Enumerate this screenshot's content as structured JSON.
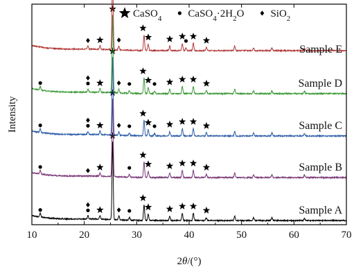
{
  "chart_data": {
    "type": "line",
    "xlabel": "2θ/(°)",
    "ylabel": "Intensity",
    "xlim": [
      10,
      70
    ],
    "x_ticks": [
      "10",
      "20",
      "30",
      "40",
      "50",
      "60",
      "70"
    ],
    "grid": false,
    "legend_position": "top",
    "legend": [
      {
        "marker": "star",
        "label": "CaSO4"
      },
      {
        "marker": "circle",
        "label": "CaSO4·2H2O"
      },
      {
        "marker": "diamond",
        "label": "SiO2"
      }
    ],
    "series": [
      {
        "name": "Sample A",
        "color": "#000000",
        "peaks": [
          {
            "x": 11.6,
            "h": 0.8
          },
          {
            "x": 20.7,
            "h": 0.7
          },
          {
            "x": 23.0,
            "h": 0.8
          },
          {
            "x": 25.4,
            "h": 17.0
          },
          {
            "x": 26.6,
            "h": 0.8
          },
          {
            "x": 28.6,
            "h": 0.6
          },
          {
            "x": 31.4,
            "h": 3.4
          },
          {
            "x": 32.2,
            "h": 1.4
          },
          {
            "x": 36.3,
            "h": 1.0
          },
          {
            "x": 38.7,
            "h": 1.6
          },
          {
            "x": 40.8,
            "h": 1.6
          },
          {
            "x": 43.3,
            "h": 0.7
          },
          {
            "x": 48.7,
            "h": 1.0
          },
          {
            "x": 52.3,
            "h": 0.6
          },
          {
            "x": 55.8,
            "h": 0.6
          },
          {
            "x": 62.0,
            "h": 0.5
          }
        ],
        "markers": [
          {
            "x": 11.6,
            "type": "circle"
          },
          {
            "x": 20.7,
            "type": "circle"
          },
          {
            "x": 20.7,
            "type": "diamond"
          },
          {
            "x": 23.0,
            "type": "star"
          },
          {
            "x": 25.4,
            "type": "star"
          },
          {
            "x": 26.6,
            "type": "diamond"
          },
          {
            "x": 28.6,
            "type": "circle"
          },
          {
            "x": 31.2,
            "type": "star"
          },
          {
            "x": 32.2,
            "type": "star"
          },
          {
            "x": 36.3,
            "type": "star"
          },
          {
            "x": 38.7,
            "type": "star"
          },
          {
            "x": 40.8,
            "type": "star"
          },
          {
            "x": 43.3,
            "type": "star"
          }
        ]
      },
      {
        "name": "Sample B",
        "color": "#7a3a78",
        "peaks": [
          {
            "x": 11.6,
            "h": 0.8
          },
          {
            "x": 23.0,
            "h": 0.7
          },
          {
            "x": 25.4,
            "h": 17.0
          },
          {
            "x": 28.6,
            "h": 0.6
          },
          {
            "x": 31.4,
            "h": 3.4
          },
          {
            "x": 32.2,
            "h": 1.4
          },
          {
            "x": 36.3,
            "h": 1.0
          },
          {
            "x": 38.7,
            "h": 1.6
          },
          {
            "x": 40.8,
            "h": 1.6
          },
          {
            "x": 43.3,
            "h": 0.7
          },
          {
            "x": 48.7,
            "h": 1.0
          },
          {
            "x": 52.3,
            "h": 0.6
          },
          {
            "x": 55.8,
            "h": 0.6
          },
          {
            "x": 62.0,
            "h": 0.5
          }
        ],
        "markers": [
          {
            "x": 11.6,
            "type": "circle"
          },
          {
            "x": 20.7,
            "type": "diamond"
          },
          {
            "x": 23.0,
            "type": "star"
          },
          {
            "x": 25.4,
            "type": "star"
          },
          {
            "x": 28.6,
            "type": "circle"
          },
          {
            "x": 31.2,
            "type": "star"
          },
          {
            "x": 32.2,
            "type": "star"
          },
          {
            "x": 36.3,
            "type": "star"
          },
          {
            "x": 38.7,
            "type": "star"
          },
          {
            "x": 40.8,
            "type": "star"
          },
          {
            "x": 43.3,
            "type": "star"
          }
        ]
      },
      {
        "name": "Sample C",
        "color": "#2e5ea8",
        "peaks": [
          {
            "x": 11.6,
            "h": 0.8
          },
          {
            "x": 20.7,
            "h": 0.7
          },
          {
            "x": 23.0,
            "h": 0.8
          },
          {
            "x": 25.4,
            "h": 17.0
          },
          {
            "x": 26.6,
            "h": 0.8
          },
          {
            "x": 28.6,
            "h": 0.6
          },
          {
            "x": 31.4,
            "h": 3.4
          },
          {
            "x": 32.2,
            "h": 1.4
          },
          {
            "x": 33.4,
            "h": 0.6
          },
          {
            "x": 36.3,
            "h": 1.0
          },
          {
            "x": 38.7,
            "h": 1.6
          },
          {
            "x": 40.8,
            "h": 1.6
          },
          {
            "x": 43.3,
            "h": 0.7
          },
          {
            "x": 48.7,
            "h": 1.0
          },
          {
            "x": 52.3,
            "h": 0.6
          },
          {
            "x": 55.8,
            "h": 0.6
          },
          {
            "x": 62.0,
            "h": 0.5
          }
        ],
        "markers": [
          {
            "x": 11.6,
            "type": "circle"
          },
          {
            "x": 20.7,
            "type": "circle"
          },
          {
            "x": 20.7,
            "type": "diamond"
          },
          {
            "x": 23.0,
            "type": "star"
          },
          {
            "x": 25.4,
            "type": "star"
          },
          {
            "x": 26.6,
            "type": "diamond"
          },
          {
            "x": 28.6,
            "type": "circle"
          },
          {
            "x": 31.2,
            "type": "star"
          },
          {
            "x": 32.2,
            "type": "star"
          },
          {
            "x": 33.4,
            "type": "circle"
          },
          {
            "x": 36.3,
            "type": "star"
          },
          {
            "x": 38.7,
            "type": "star"
          },
          {
            "x": 40.8,
            "type": "star"
          },
          {
            "x": 43.3,
            "type": "star"
          }
        ]
      },
      {
        "name": "Sample D",
        "color": "#3f9a3a",
        "peaks": [
          {
            "x": 11.6,
            "h": 0.8
          },
          {
            "x": 20.7,
            "h": 0.7
          },
          {
            "x": 23.0,
            "h": 0.8
          },
          {
            "x": 25.4,
            "h": 17.0
          },
          {
            "x": 26.6,
            "h": 0.8
          },
          {
            "x": 28.6,
            "h": 0.6
          },
          {
            "x": 31.4,
            "h": 3.4
          },
          {
            "x": 32.2,
            "h": 1.4
          },
          {
            "x": 33.4,
            "h": 0.6
          },
          {
            "x": 36.3,
            "h": 1.0
          },
          {
            "x": 38.7,
            "h": 1.6
          },
          {
            "x": 40.8,
            "h": 1.6
          },
          {
            "x": 43.3,
            "h": 0.7
          },
          {
            "x": 48.7,
            "h": 1.0
          },
          {
            "x": 52.3,
            "h": 0.6
          },
          {
            "x": 55.8,
            "h": 0.6
          },
          {
            "x": 62.0,
            "h": 0.5
          }
        ],
        "markers": [
          {
            "x": 11.6,
            "type": "circle"
          },
          {
            "x": 20.7,
            "type": "circle"
          },
          {
            "x": 20.7,
            "type": "diamond"
          },
          {
            "x": 23.0,
            "type": "star"
          },
          {
            "x": 25.4,
            "type": "star"
          },
          {
            "x": 26.6,
            "type": "diamond"
          },
          {
            "x": 28.6,
            "type": "circle"
          },
          {
            "x": 31.2,
            "type": "star"
          },
          {
            "x": 32.2,
            "type": "star"
          },
          {
            "x": 33.4,
            "type": "circle"
          },
          {
            "x": 36.3,
            "type": "star"
          },
          {
            "x": 38.7,
            "type": "star"
          },
          {
            "x": 40.8,
            "type": "star"
          },
          {
            "x": 43.3,
            "type": "star"
          }
        ]
      },
      {
        "name": "Sample E",
        "color": "#b23a3a",
        "peaks": [
          {
            "x": 20.7,
            "h": 0.7
          },
          {
            "x": 23.0,
            "h": 0.8
          },
          {
            "x": 25.4,
            "h": 17.0
          },
          {
            "x": 26.6,
            "h": 0.8
          },
          {
            "x": 31.4,
            "h": 3.4
          },
          {
            "x": 32.2,
            "h": 1.4
          },
          {
            "x": 36.3,
            "h": 1.0
          },
          {
            "x": 38.7,
            "h": 1.6
          },
          {
            "x": 39.4,
            "h": 0.6
          },
          {
            "x": 40.8,
            "h": 1.6
          },
          {
            "x": 43.3,
            "h": 0.7
          },
          {
            "x": 48.7,
            "h": 1.0
          },
          {
            "x": 52.3,
            "h": 0.6
          },
          {
            "x": 55.8,
            "h": 0.6
          },
          {
            "x": 62.0,
            "h": 0.5
          }
        ],
        "markers": [
          {
            "x": 20.7,
            "type": "diamond"
          },
          {
            "x": 23.0,
            "type": "star"
          },
          {
            "x": 25.4,
            "type": "star"
          },
          {
            "x": 26.6,
            "type": "diamond"
          },
          {
            "x": 31.2,
            "type": "star"
          },
          {
            "x": 32.2,
            "type": "star"
          },
          {
            "x": 36.3,
            "type": "star"
          },
          {
            "x": 38.7,
            "type": "star"
          },
          {
            "x": 39.4,
            "type": "circle"
          },
          {
            "x": 40.8,
            "type": "star"
          },
          {
            "x": 43.3,
            "type": "star"
          }
        ]
      }
    ]
  }
}
